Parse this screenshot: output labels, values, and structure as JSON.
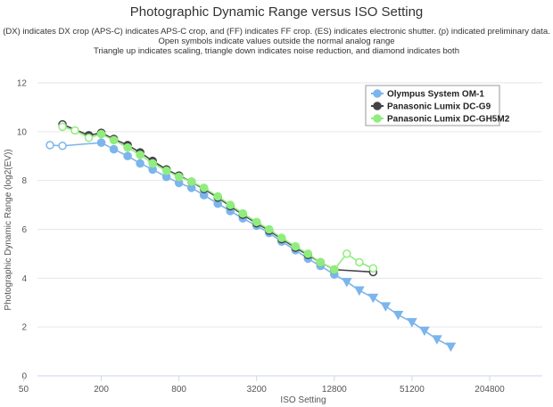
{
  "chart_data": {
    "type": "line",
    "title": "Photographic Dynamic Range versus ISO Setting",
    "subtitle": [
      "(DX) indicates DX crop (APS-C) indicates APS-C crop, and (FF) indicates FF crop. (ES) indicates electronic shutter. (p) indicated preliminary data.",
      "Open symbols indicate values outside the normal analog range",
      "Triangle up indicates scaling, triangle down indicates noise reduction, and diamond indicates both"
    ],
    "xlabel": "ISO Setting",
    "ylabel": "Photographic Dynamic Range (log2(EV))",
    "xscale": "log2",
    "x_ticks": [
      50,
      200,
      800,
      3200,
      12800,
      51200,
      204800
    ],
    "x_tick_labels": [
      "50",
      "200",
      "800",
      "3200",
      "12800",
      "51200",
      "204800"
    ],
    "ylim": [
      0,
      12
    ],
    "y_ticks": [
      0,
      2,
      4,
      6,
      8,
      10,
      12
    ],
    "y_tick_labels": [
      "0",
      "2",
      "4",
      "6",
      "8",
      "10",
      "12"
    ],
    "legend_position": "top-right",
    "series": [
      {
        "name": "Olympus System OM-1",
        "color": "#7cb5ec",
        "points": [
          {
            "x": 80,
            "y": 9.45,
            "marker": "open-circle"
          },
          {
            "x": 100,
            "y": 9.42,
            "marker": "open-circle"
          },
          {
            "x": 200,
            "y": 9.55,
            "marker": "circle"
          },
          {
            "x": 250,
            "y": 9.28,
            "marker": "circle"
          },
          {
            "x": 320,
            "y": 9.0,
            "marker": "circle"
          },
          {
            "x": 400,
            "y": 8.7,
            "marker": "circle"
          },
          {
            "x": 500,
            "y": 8.45,
            "marker": "circle"
          },
          {
            "x": 640,
            "y": 8.15,
            "marker": "circle"
          },
          {
            "x": 800,
            "y": 7.9,
            "marker": "circle"
          },
          {
            "x": 1000,
            "y": 7.7,
            "marker": "circle"
          },
          {
            "x": 1250,
            "y": 7.4,
            "marker": "circle"
          },
          {
            "x": 1600,
            "y": 7.05,
            "marker": "circle"
          },
          {
            "x": 2000,
            "y": 6.75,
            "marker": "circle"
          },
          {
            "x": 2500,
            "y": 6.45,
            "marker": "circle"
          },
          {
            "x": 3200,
            "y": 6.15,
            "marker": "circle"
          },
          {
            "x": 4000,
            "y": 5.85,
            "marker": "circle"
          },
          {
            "x": 5000,
            "y": 5.5,
            "marker": "circle"
          },
          {
            "x": 6400,
            "y": 5.15,
            "marker": "circle"
          },
          {
            "x": 8000,
            "y": 4.8,
            "marker": "circle"
          },
          {
            "x": 10000,
            "y": 4.5,
            "marker": "circle"
          },
          {
            "x": 12800,
            "y": 4.15,
            "marker": "circle"
          },
          {
            "x": 16000,
            "y": 3.85,
            "marker": "triangle-down"
          },
          {
            "x": 20000,
            "y": 3.5,
            "marker": "triangle-down"
          },
          {
            "x": 25600,
            "y": 3.2,
            "marker": "triangle-down"
          },
          {
            "x": 32000,
            "y": 2.85,
            "marker": "triangle-down"
          },
          {
            "x": 40000,
            "y": 2.5,
            "marker": "triangle-down"
          },
          {
            "x": 51200,
            "y": 2.2,
            "marker": "triangle-down"
          },
          {
            "x": 64000,
            "y": 1.85,
            "marker": "triangle-down"
          },
          {
            "x": 80000,
            "y": 1.5,
            "marker": "triangle-down"
          },
          {
            "x": 102400,
            "y": 1.2,
            "marker": "triangle-down"
          }
        ]
      },
      {
        "name": "Panasonic Lumix DC-G9",
        "color": "#434348",
        "points": [
          {
            "x": 100,
            "y": 10.3,
            "marker": "open-circle"
          },
          {
            "x": 160,
            "y": 9.85,
            "marker": "circle"
          },
          {
            "x": 200,
            "y": 9.95,
            "marker": "circle"
          },
          {
            "x": 250,
            "y": 9.7,
            "marker": "circle"
          },
          {
            "x": 320,
            "y": 9.45,
            "marker": "circle"
          },
          {
            "x": 400,
            "y": 9.15,
            "marker": "circle"
          },
          {
            "x": 500,
            "y": 8.8,
            "marker": "circle"
          },
          {
            "x": 640,
            "y": 8.45,
            "marker": "circle"
          },
          {
            "x": 800,
            "y": 8.2,
            "marker": "circle"
          },
          {
            "x": 1000,
            "y": 7.95,
            "marker": "circle"
          },
          {
            "x": 1250,
            "y": 7.65,
            "marker": "circle"
          },
          {
            "x": 1600,
            "y": 7.3,
            "marker": "circle"
          },
          {
            "x": 2000,
            "y": 6.95,
            "marker": "circle"
          },
          {
            "x": 2500,
            "y": 6.6,
            "marker": "circle"
          },
          {
            "x": 3200,
            "y": 6.25,
            "marker": "circle"
          },
          {
            "x": 4000,
            "y": 5.95,
            "marker": "circle"
          },
          {
            "x": 5000,
            "y": 5.6,
            "marker": "circle"
          },
          {
            "x": 6400,
            "y": 5.25,
            "marker": "circle"
          },
          {
            "x": 8000,
            "y": 4.95,
            "marker": "circle"
          },
          {
            "x": 10000,
            "y": 4.65,
            "marker": "circle"
          },
          {
            "x": 12800,
            "y": 4.35,
            "marker": "circle"
          },
          {
            "x": 25600,
            "y": 4.25,
            "marker": "open-circle"
          }
        ]
      },
      {
        "name": "Panasonic Lumix DC-GH5M2",
        "color": "#90ed7d",
        "points": [
          {
            "x": 100,
            "y": 10.2,
            "marker": "open-circle"
          },
          {
            "x": 125,
            "y": 10.05,
            "marker": "open-circle"
          },
          {
            "x": 160,
            "y": 9.75,
            "marker": "open-circle"
          },
          {
            "x": 200,
            "y": 9.9,
            "marker": "circle"
          },
          {
            "x": 250,
            "y": 9.65,
            "marker": "circle"
          },
          {
            "x": 320,
            "y": 9.35,
            "marker": "circle"
          },
          {
            "x": 400,
            "y": 9.05,
            "marker": "circle"
          },
          {
            "x": 500,
            "y": 8.7,
            "marker": "circle"
          },
          {
            "x": 640,
            "y": 8.4,
            "marker": "circle"
          },
          {
            "x": 800,
            "y": 8.15,
            "marker": "circle"
          },
          {
            "x": 1000,
            "y": 7.95,
            "marker": "circle"
          },
          {
            "x": 1250,
            "y": 7.7,
            "marker": "circle"
          },
          {
            "x": 1600,
            "y": 7.35,
            "marker": "circle"
          },
          {
            "x": 2000,
            "y": 7.0,
            "marker": "circle"
          },
          {
            "x": 2500,
            "y": 6.65,
            "marker": "circle"
          },
          {
            "x": 3200,
            "y": 6.3,
            "marker": "circle"
          },
          {
            "x": 4000,
            "y": 6.0,
            "marker": "circle"
          },
          {
            "x": 5000,
            "y": 5.65,
            "marker": "circle"
          },
          {
            "x": 6400,
            "y": 5.3,
            "marker": "circle"
          },
          {
            "x": 8000,
            "y": 5.0,
            "marker": "circle"
          },
          {
            "x": 10000,
            "y": 4.65,
            "marker": "circle"
          },
          {
            "x": 12800,
            "y": 4.35,
            "marker": "circle"
          },
          {
            "x": 16000,
            "y": 5.0,
            "marker": "open-circle"
          },
          {
            "x": 20000,
            "y": 4.65,
            "marker": "open-circle"
          },
          {
            "x": 25600,
            "y": 4.4,
            "marker": "open-circle"
          }
        ]
      }
    ]
  }
}
